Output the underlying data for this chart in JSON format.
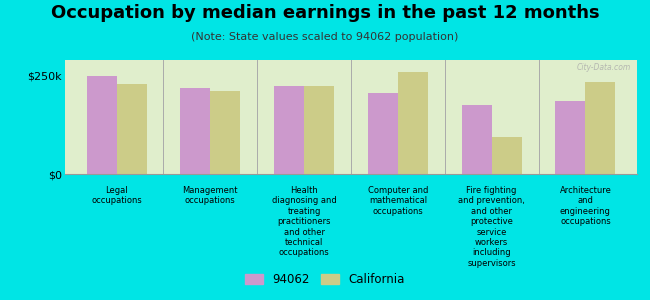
{
  "title": "Occupation by median earnings in the past 12 months",
  "subtitle": "(Note: State values scaled to 94062 population)",
  "categories": [
    "Legal\noccupations",
    "Management\noccupations",
    "Health\ndiagnosing and\ntreating\npractitioners\nand other\ntechnical\noccupations",
    "Computer and\nmathematical\noccupations",
    "Fire fighting\nand prevention,\nand other\nprotective\nservice\nworkers\nincluding\nsupervisors",
    "Architecture\nand\nengineering\noccupations"
  ],
  "values_94062": [
    250000,
    220000,
    225000,
    205000,
    175000,
    185000
  ],
  "values_california": [
    230000,
    210000,
    225000,
    260000,
    95000,
    235000
  ],
  "color_94062": "#cc99cc",
  "color_california": "#cccc88",
  "background_color": "#00e5e5",
  "chart_bg_top": "#e0eecc",
  "chart_bg_bottom": "#f0f8e8",
  "ylim": [
    0,
    290000
  ],
  "ytick_labels": [
    "$0",
    "$250k"
  ],
  "ytick_vals": [
    0,
    250000
  ],
  "legend_labels": [
    "94062",
    "California"
  ],
  "bar_width": 0.32,
  "title_fontsize": 13,
  "subtitle_fontsize": 8,
  "watermark": "City-Data.com"
}
